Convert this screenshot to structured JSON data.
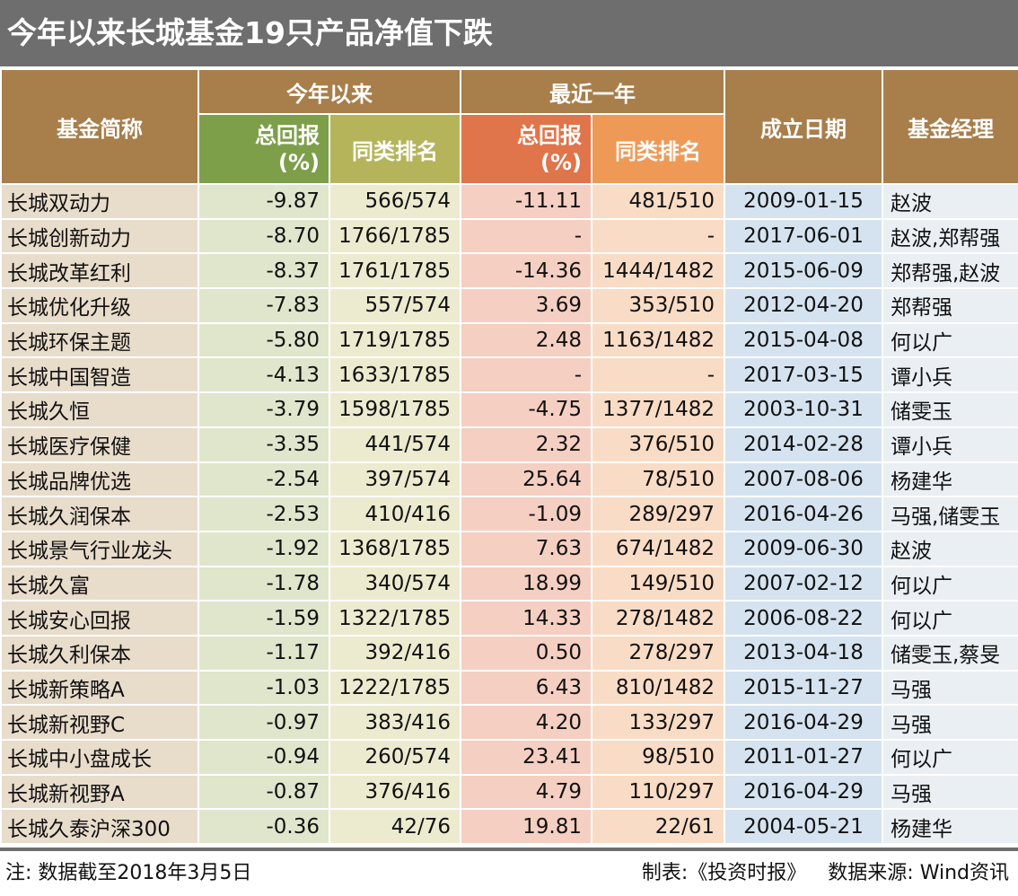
{
  "title": "今年以来长城基金19只产品净值下跌",
  "headers": {
    "fund_name": "基金简称",
    "ytd": "今年以来",
    "last_year": "最近一年",
    "total_return": "总回报",
    "total_return_unit": "(%)",
    "rank": "同类排名",
    "established": "成立日期",
    "manager": "基金经理"
  },
  "rows": [
    {
      "name": "长城双动力",
      "ytd_return": "-9.87",
      "ytd_rank": "566/574",
      "yr_return": "-11.11",
      "yr_rank": "481/510",
      "date": "2009-01-15",
      "manager": "赵波"
    },
    {
      "name": "长城创新动力",
      "ytd_return": "-8.70",
      "ytd_rank": "1766/1785",
      "yr_return": "-",
      "yr_rank": "-",
      "date": "2017-06-01",
      "manager": "赵波,郑帮强"
    },
    {
      "name": "长城改革红利",
      "ytd_return": "-8.37",
      "ytd_rank": "1761/1785",
      "yr_return": "-14.36",
      "yr_rank": "1444/1482",
      "date": "2015-06-09",
      "manager": "郑帮强,赵波"
    },
    {
      "name": "长城优化升级",
      "ytd_return": "-7.83",
      "ytd_rank": "557/574",
      "yr_return": "3.69",
      "yr_rank": "353/510",
      "date": "2012-04-20",
      "manager": "郑帮强"
    },
    {
      "name": "长城环保主题",
      "ytd_return": "-5.80",
      "ytd_rank": "1719/1785",
      "yr_return": "2.48",
      "yr_rank": "1163/1482",
      "date": "2015-04-08",
      "manager": "何以广"
    },
    {
      "name": "长城中国智造",
      "ytd_return": "-4.13",
      "ytd_rank": "1633/1785",
      "yr_return": "-",
      "yr_rank": "-",
      "date": "2017-03-15",
      "manager": "谭小兵"
    },
    {
      "name": "长城久恒",
      "ytd_return": "-3.79",
      "ytd_rank": "1598/1785",
      "yr_return": "-4.75",
      "yr_rank": "1377/1482",
      "date": "2003-10-31",
      "manager": "储雯玉"
    },
    {
      "name": "长城医疗保健",
      "ytd_return": "-3.35",
      "ytd_rank": "441/574",
      "yr_return": "2.32",
      "yr_rank": "376/510",
      "date": "2014-02-28",
      "manager": "谭小兵"
    },
    {
      "name": "长城品牌优选",
      "ytd_return": "-2.54",
      "ytd_rank": "397/574",
      "yr_return": "25.64",
      "yr_rank": "78/510",
      "date": "2007-08-06",
      "manager": "杨建华"
    },
    {
      "name": "长城久润保本",
      "ytd_return": "-2.53",
      "ytd_rank": "410/416",
      "yr_return": "-1.09",
      "yr_rank": "289/297",
      "date": "2016-04-26",
      "manager": "马强,储雯玉"
    },
    {
      "name": "长城景气行业龙头",
      "ytd_return": "-1.92",
      "ytd_rank": "1368/1785",
      "yr_return": "7.63",
      "yr_rank": "674/1482",
      "date": "2009-06-30",
      "manager": "赵波"
    },
    {
      "name": "长城久富",
      "ytd_return": "-1.78",
      "ytd_rank": "340/574",
      "yr_return": "18.99",
      "yr_rank": "149/510",
      "date": "2007-02-12",
      "manager": "何以广"
    },
    {
      "name": "长城安心回报",
      "ytd_return": "-1.59",
      "ytd_rank": "1322/1785",
      "yr_return": "14.33",
      "yr_rank": "278/1482",
      "date": "2006-08-22",
      "manager": "何以广"
    },
    {
      "name": "长城久利保本",
      "ytd_return": "-1.17",
      "ytd_rank": "392/416",
      "yr_return": "0.50",
      "yr_rank": "278/297",
      "date": "2013-04-18",
      "manager": "储雯玉,蔡旻"
    },
    {
      "name": "长城新策略A",
      "ytd_return": "-1.03",
      "ytd_rank": "1222/1785",
      "yr_return": "6.43",
      "yr_rank": "810/1482",
      "date": "2015-11-27",
      "manager": "马强"
    },
    {
      "name": "长城新视野C",
      "ytd_return": "-0.97",
      "ytd_rank": "383/416",
      "yr_return": "4.20",
      "yr_rank": "133/297",
      "date": "2016-04-29",
      "manager": "马强"
    },
    {
      "name": "长城中小盘成长",
      "ytd_return": "-0.94",
      "ytd_rank": "260/574",
      "yr_return": "23.41",
      "yr_rank": "98/510",
      "date": "2011-01-27",
      "manager": "何以广"
    },
    {
      "name": "长城新视野A",
      "ytd_return": "-0.87",
      "ytd_rank": "376/416",
      "yr_return": "4.79",
      "yr_rank": "110/297",
      "date": "2016-04-29",
      "manager": "马强"
    },
    {
      "name": "长城久泰沪深300",
      "ytd_return": "-0.36",
      "ytd_rank": "42/76",
      "yr_return": "19.81",
      "yr_rank": "22/61",
      "date": "2004-05-21",
      "manager": "杨建华"
    }
  ],
  "footer": {
    "note": "注: 数据截至2018年3月5日",
    "maker": "制表:《投资时报》",
    "source": "数据来源: Wind资讯"
  },
  "colors": {
    "title_bg": "#6e6e6e",
    "header_brown": "#a87e4a",
    "header_green": "#7e9f4a",
    "header_olive": "#b5b45a",
    "header_orange": "#e0744a",
    "header_light_orange": "#ee9a56"
  }
}
